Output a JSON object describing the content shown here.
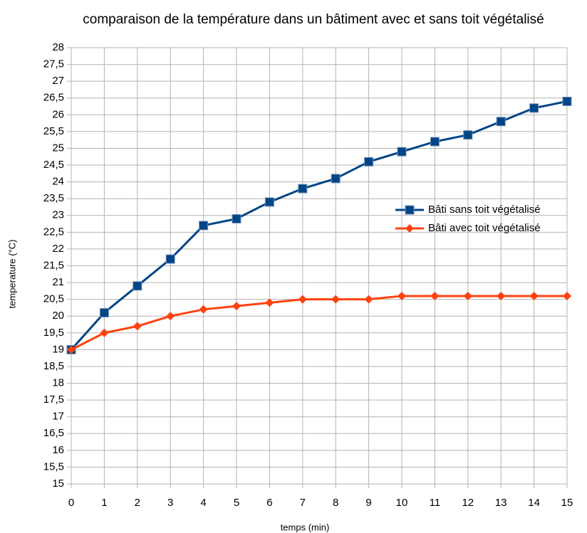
{
  "chart_data": {
    "type": "line",
    "title": "comparaison de la température dans un bâtiment avec et sans toit végétalisé",
    "xlabel": "temps (min)",
    "ylabel": "temperature (°C)",
    "x": [
      0,
      1,
      2,
      3,
      4,
      5,
      6,
      7,
      8,
      9,
      10,
      11,
      12,
      13,
      14,
      15
    ],
    "series": [
      {
        "name": "Bâti sans toit végétalisé",
        "color": "#004586",
        "marker": "square",
        "values": [
          19,
          20.1,
          20.9,
          21.7,
          22.7,
          22.9,
          23.4,
          23.8,
          24.1,
          24.6,
          24.9,
          25.2,
          25.4,
          25.8,
          26.2,
          26.4
        ]
      },
      {
        "name": "Bâti avec toit végétalisé",
        "color": "#ff420e",
        "marker": "diamond",
        "values": [
          19,
          19.5,
          19.7,
          20,
          20.2,
          20.3,
          20.4,
          20.5,
          20.5,
          20.5,
          20.6,
          20.6,
          20.6,
          20.6,
          20.6,
          20.6
        ]
      }
    ],
    "xlim": [
      0,
      15
    ],
    "xticks": [
      0,
      1,
      2,
      3,
      4,
      5,
      6,
      7,
      8,
      9,
      10,
      11,
      12,
      13,
      14,
      15
    ],
    "ylim": [
      15,
      28
    ],
    "yticks": [
      15,
      {
        "value": 15.5,
        "label": "15,5"
      },
      16,
      {
        "value": 16.5,
        "label": "16,5"
      },
      17,
      {
        "value": 17.5,
        "label": "17,5"
      },
      18,
      {
        "value": 18.5,
        "label": "18,5"
      },
      19,
      {
        "value": 19.5,
        "label": "19,5"
      },
      20,
      {
        "value": 20.5,
        "label": "20,5"
      },
      21,
      {
        "value": 21.5,
        "label": "21,5"
      },
      22,
      {
        "value": 22.5,
        "label": "22,5"
      },
      23,
      {
        "value": 23.5,
        "label": "23,5"
      },
      24,
      {
        "value": 24.5,
        "label": "24,5"
      },
      25,
      {
        "value": 25.5,
        "label": "25,5"
      },
      26,
      {
        "value": 26.5,
        "label": "26,5"
      },
      27,
      {
        "value": 27.5,
        "label": "27,5"
      },
      28
    ],
    "grid": true,
    "legend": "right"
  }
}
